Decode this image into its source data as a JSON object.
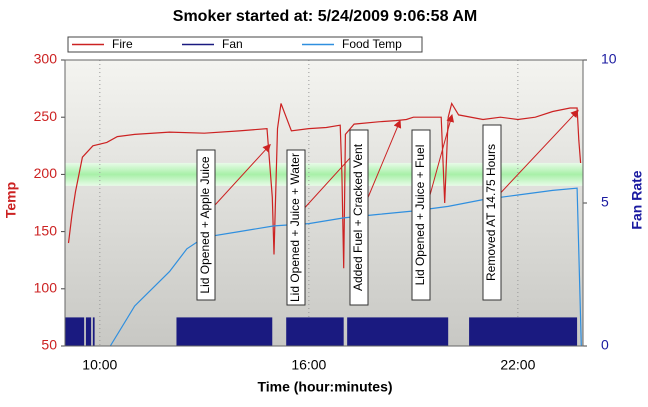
{
  "chart_data": {
    "type": "line",
    "title": "Smoker started at: 5/24/2009 9:06:58 AM",
    "x_label": "Time (hour:minutes)",
    "y_label": "Temp",
    "y2_label": "Fan Rate",
    "xlim": [
      9,
      23.87
    ],
    "xticks": [
      {
        "value": 10,
        "label": "10:00"
      },
      {
        "value": 16,
        "label": "16:00"
      },
      {
        "value": 22,
        "label": "22:00"
      }
    ],
    "ylim": [
      50,
      300
    ],
    "yticks": [
      50,
      100,
      150,
      200,
      250,
      300
    ],
    "y2lim": [
      0,
      10
    ],
    "y2ticks": [
      0,
      5,
      10
    ],
    "grid": true,
    "target_band": [
      190,
      210
    ],
    "series": [
      {
        "name": "Fire",
        "color": "#cc2222",
        "style": "line",
        "x": [
          9.1,
          9.2,
          9.3,
          9.5,
          9.8,
          10.2,
          10.5,
          11,
          12,
          13,
          14,
          14.8,
          14.95,
          15.0,
          15.1,
          15.2,
          15.35,
          15.5,
          16,
          16.5,
          16.9,
          16.95,
          17.0,
          17.05,
          17.3,
          18,
          18.5,
          18.8,
          19,
          19.5,
          19.8,
          19.9,
          20.0,
          20.1,
          20.3,
          21,
          21.5,
          22,
          22.5,
          23,
          23.5,
          23.7,
          23.75,
          23.8
        ],
        "values": [
          140,
          165,
          185,
          215,
          225,
          228,
          233,
          235,
          237,
          236,
          238,
          240,
          180,
          130,
          240,
          262,
          250,
          238,
          240,
          241,
          243,
          200,
          118,
          235,
          244,
          246,
          247,
          248,
          250,
          250,
          250,
          175,
          250,
          262,
          252,
          248,
          250,
          248,
          250,
          255,
          258,
          258,
          230,
          210
        ]
      },
      {
        "name": "Fan",
        "color": "#1a1a80",
        "style": "step",
        "axis": "y2",
        "x": [
          9.0,
          9.55,
          9.6,
          9.75,
          9.8,
          9.85,
          12.2,
          14.95,
          15.35,
          17.0,
          17.1,
          20.0,
          20.6,
          23.7
        ],
        "values": [
          1,
          0,
          1,
          0,
          1,
          0,
          1,
          0,
          1,
          0,
          1,
          0,
          1,
          0
        ]
      },
      {
        "name": "Food Temp",
        "color": "#2f8fdf",
        "style": "line",
        "x": [
          10.3,
          11,
          12,
          12.5,
          13,
          14,
          15,
          16,
          17,
          18,
          19,
          20,
          21,
          22,
          23,
          23.7,
          23.82
        ],
        "values": [
          50,
          85,
          115,
          135,
          145,
          150,
          155,
          157,
          162,
          165,
          168,
          172,
          178,
          182,
          186,
          188,
          50
        ]
      }
    ],
    "annotations": [
      {
        "text": "Lid Opened + Apple Juice",
        "x": 14.89,
        "y": 226
      },
      {
        "text": "Lid Opened + Juice + Water",
        "x": 17.53,
        "y": 226
      },
      {
        "text": "Added Fuel + Cracked Vent",
        "x": 18.62,
        "y": 247
      },
      {
        "text": "Lid Opened + Juice + Fuel",
        "x": 20.11,
        "y": 252
      },
      {
        "text": "Removed AT 14.75 Hours",
        "x": 23.73,
        "y": 256
      }
    ]
  }
}
